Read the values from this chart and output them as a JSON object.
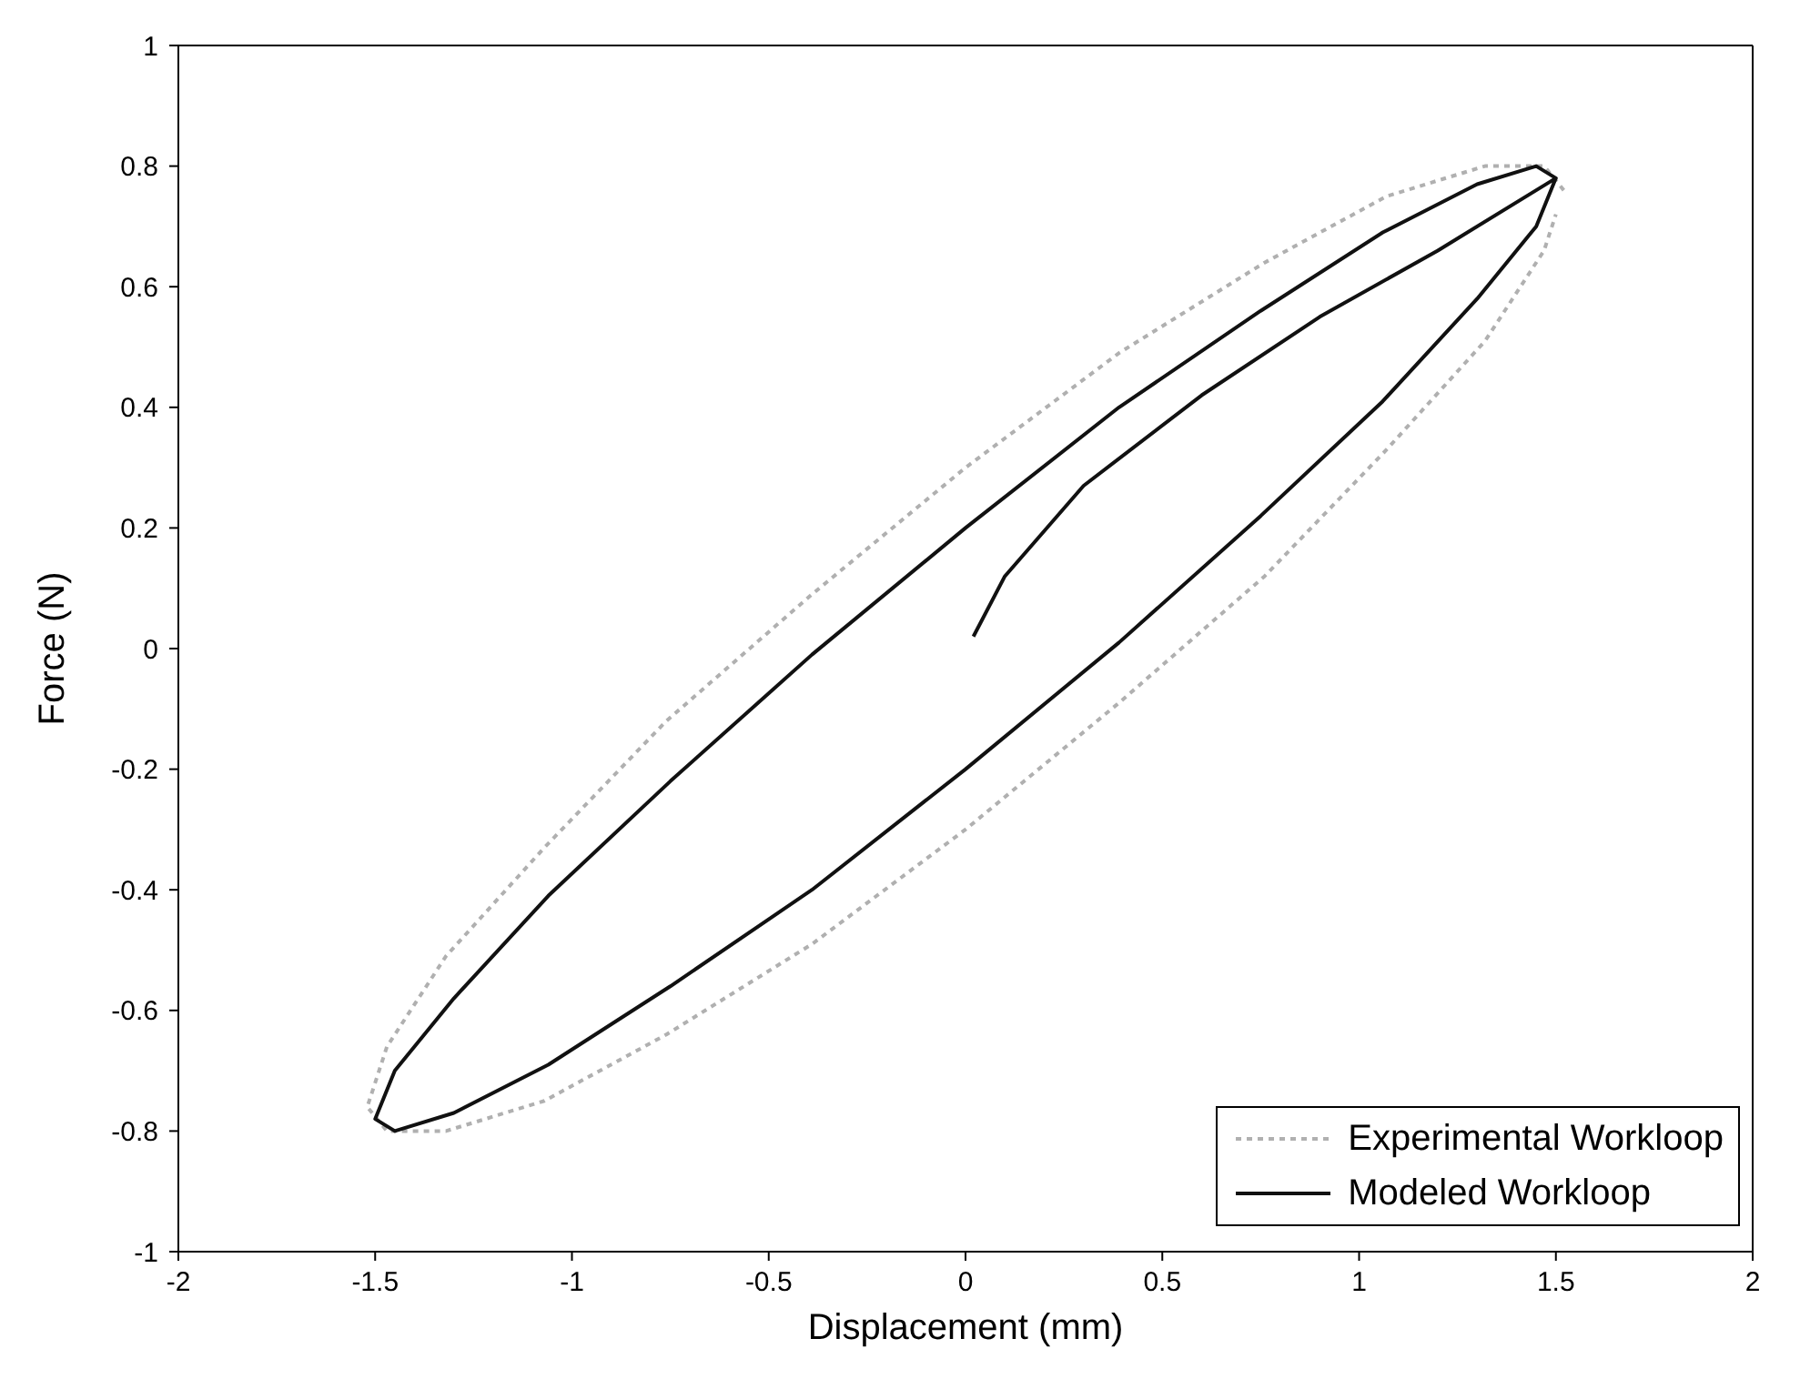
{
  "chart_data": {
    "type": "line",
    "xlabel": "Displacement (mm)",
    "ylabel": "Force (N)",
    "xlim": [
      -2,
      2
    ],
    "ylim": [
      -1,
      1
    ],
    "xticks": [
      -2,
      -1.5,
      -1,
      -0.5,
      0,
      0.5,
      1,
      1.5,
      2
    ],
    "yticks": [
      -1,
      -0.8,
      -0.6,
      -0.4,
      -0.2,
      0,
      0.2,
      0.4,
      0.6,
      0.8,
      1
    ],
    "grid": false,
    "legend": "bottom right",
    "marker": "none",
    "series": [
      {
        "name": "Experimental Workloop",
        "color": "#b0b0b0",
        "line_style": "dotted",
        "x": [
          1.52,
          1.47,
          1.32,
          1.07,
          0.76,
          0.39,
          0,
          -0.39,
          -0.76,
          -1.07,
          -1.32,
          -1.47,
          -1.52,
          -1.47,
          -1.32,
          -1.07,
          -0.76,
          -0.39,
          0,
          0.39,
          0.76,
          1.07,
          1.32,
          1.47,
          1.5
        ],
        "values": [
          0.76,
          0.8,
          0.8,
          0.75,
          0.64,
          0.49,
          0.3,
          0.09,
          -0.12,
          -0.33,
          -0.51,
          -0.66,
          -0.76,
          -0.8,
          -0.8,
          -0.75,
          -0.64,
          -0.49,
          -0.3,
          -0.09,
          0.12,
          0.33,
          0.51,
          0.66,
          0.72
        ]
      },
      {
        "name": "Modeled Workloop",
        "color": "#111111",
        "line_style": "solid",
        "x": [
          0.02,
          0.1,
          0.3,
          0.6,
          0.9,
          1.2,
          1.5,
          1.45,
          1.3,
          1.06,
          0.75,
          0.39,
          0,
          -0.39,
          -0.75,
          -1.06,
          -1.3,
          -1.45,
          -1.5,
          -1.45,
          -1.3,
          -1.06,
          -0.75,
          -0.39,
          0,
          0.39,
          0.75,
          1.06,
          1.3,
          1.45,
          1.5
        ],
        "values": [
          0.02,
          0.12,
          0.27,
          0.42,
          0.55,
          0.66,
          0.78,
          0.8,
          0.77,
          0.69,
          0.56,
          0.4,
          0.2,
          -0.01,
          -0.22,
          -0.41,
          -0.58,
          -0.7,
          -0.78,
          -0.8,
          -0.77,
          -0.69,
          -0.56,
          -0.4,
          -0.2,
          0.01,
          0.22,
          0.41,
          0.58,
          0.7,
          0.78
        ]
      }
    ]
  }
}
